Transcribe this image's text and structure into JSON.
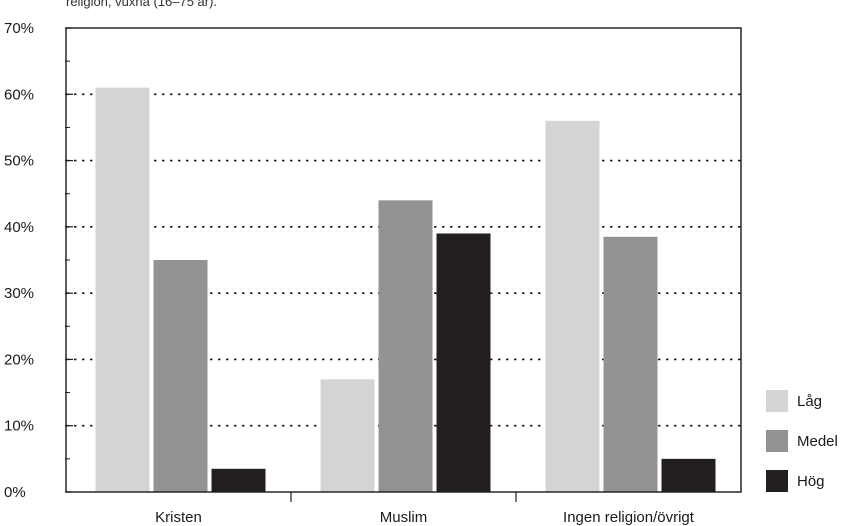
{
  "caption": "religion, vuxna (16–75 år).",
  "chart_data": {
    "type": "bar",
    "categories": [
      "Kristen",
      "Muslim",
      "Ingen religion/övrigt"
    ],
    "series": [
      {
        "name": "Låg",
        "values": [
          61,
          17,
          56
        ],
        "color": "#d4d4d4"
      },
      {
        "name": "Medel",
        "values": [
          35,
          44,
          38.5
        ],
        "color": "#939393"
      },
      {
        "name": "Hög",
        "values": [
          3.5,
          39,
          5
        ],
        "color": "#231f20"
      }
    ],
    "ylim": [
      0,
      70
    ],
    "yticks": [
      "0%",
      "10%",
      "20%",
      "30%",
      "40%",
      "50%",
      "60%",
      "70%"
    ],
    "grid": "dotted",
    "legend": "right",
    "title": "",
    "xlabel": "",
    "ylabel": ""
  }
}
